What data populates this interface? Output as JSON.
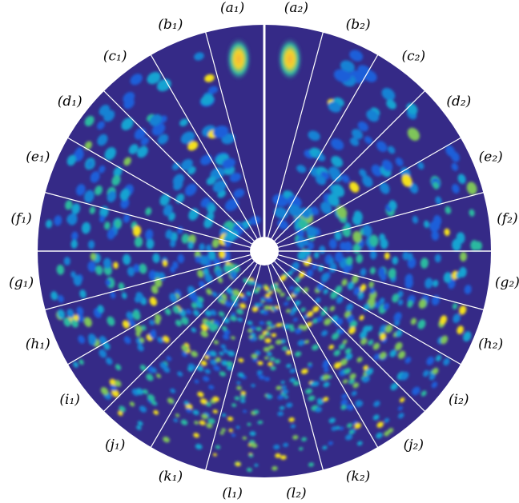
{
  "panels": {
    "left": [
      "(a₁)",
      "(b₁)",
      "(c₁)",
      "(d₁)",
      "(e₁)",
      "(f₁)",
      "(g₁)",
      "(h₁)",
      "(i₁)",
      "(j₁)",
      "(k₁)",
      "(l₁)"
    ],
    "right": [
      "(a₂)",
      "(b₂)",
      "(c₂)",
      "(d₂)",
      "(e₂)",
      "(f₂)",
      "(g₂)",
      "(h₂)",
      "(i₂)",
      "(j₂)",
      "(k₂)",
      "(l₂)"
    ]
  }
}
